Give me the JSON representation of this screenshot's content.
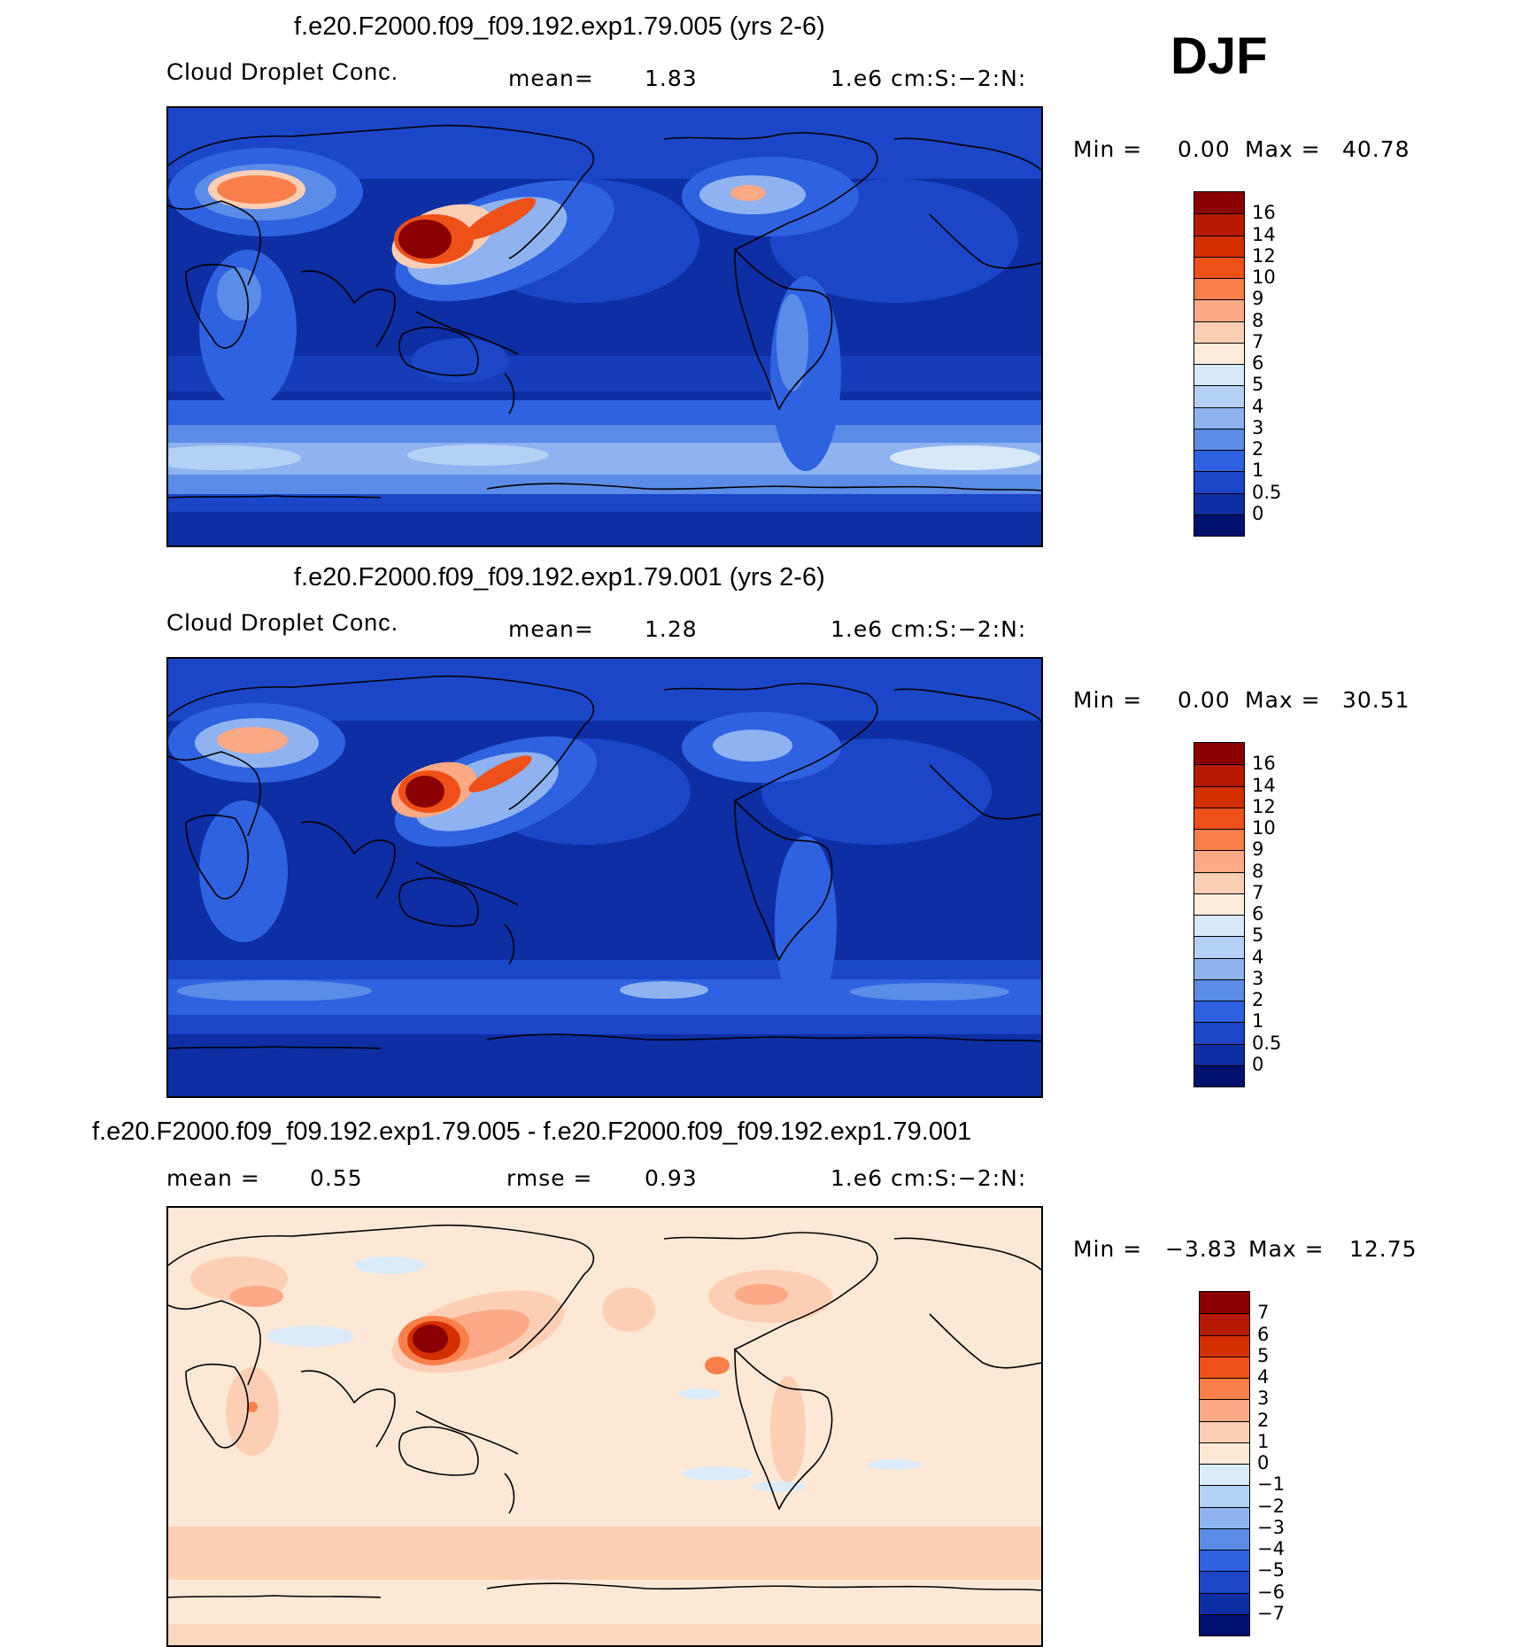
{
  "season": "DJF",
  "panels": [
    {
      "title": "f.e20.F2000.f09_f09.192.exp1.79.005 (yrs 2-6)",
      "variable": "Cloud Droplet Conc.",
      "mean_label": "mean=",
      "mean": "1.83",
      "units": "1.e6 cm:S:−2:N:",
      "min_label": "Min =",
      "min": "0.00",
      "max_label": "Max =",
      "max": "40.78",
      "colorbar_labels": [
        "16",
        "14",
        "12",
        "10",
        "9",
        "8",
        "7",
        "6",
        "5",
        "4",
        "3",
        "2",
        "1",
        "0.5",
        "0"
      ],
      "colorbar_colors": [
        "#8b0000",
        "#b51a00",
        "#d42f00",
        "#ef5018",
        "#f97f4a",
        "#fca985",
        "#fccfb5",
        "#fdebdb",
        "#d8e8f8",
        "#b5d0f5",
        "#8fb3f0",
        "#5a8ce8",
        "#2f62e0",
        "#1b46c8",
        "#0e2ea4",
        "#02106e"
      ]
    },
    {
      "title": "f.e20.F2000.f09_f09.192.exp1.79.001 (yrs 2-6)",
      "variable": "Cloud Droplet Conc.",
      "mean_label": "mean=",
      "mean": "1.28",
      "units": "1.e6 cm:S:−2:N:",
      "min_label": "Min =",
      "min": "0.00",
      "max_label": "Max =",
      "max": "30.51",
      "colorbar_labels": [
        "16",
        "14",
        "12",
        "10",
        "9",
        "8",
        "7",
        "6",
        "5",
        "4",
        "3",
        "2",
        "1",
        "0.5",
        "0"
      ],
      "colorbar_colors": [
        "#8b0000",
        "#b51a00",
        "#d42f00",
        "#ef5018",
        "#f97f4a",
        "#fca985",
        "#fccfb5",
        "#fdebdb",
        "#d8e8f8",
        "#b5d0f5",
        "#8fb3f0",
        "#5a8ce8",
        "#2f62e0",
        "#1b46c8",
        "#0e2ea4",
        "#02106e"
      ]
    },
    {
      "title": "f.e20.F2000.f09_f09.192.exp1.79.005 - f.e20.F2000.f09_f09.192.exp1.79.001",
      "mean_label": "mean =",
      "mean": "0.55",
      "rmse_label": "rmse =",
      "rmse": "0.93",
      "units": "1.e6 cm:S:−2:N:",
      "min_label": "Min =",
      "min": "−3.83",
      "max_label": "Max =",
      "max": "12.75",
      "colorbar_labels": [
        "7",
        "6",
        "5",
        "4",
        "3",
        "2",
        "1",
        "0",
        "−1",
        "−2",
        "−3",
        "−4",
        "−5",
        "−6",
        "−7"
      ],
      "colorbar_colors": [
        "#8b0000",
        "#b51a00",
        "#d42f00",
        "#ef5018",
        "#f97f4a",
        "#fca985",
        "#fccfb5",
        "#fde8d6",
        "#dcebfa",
        "#b5d0f5",
        "#8fb3f0",
        "#5a8ce8",
        "#2f62e0",
        "#1b46c8",
        "#0e2ea4",
        "#02106e"
      ]
    }
  ]
}
